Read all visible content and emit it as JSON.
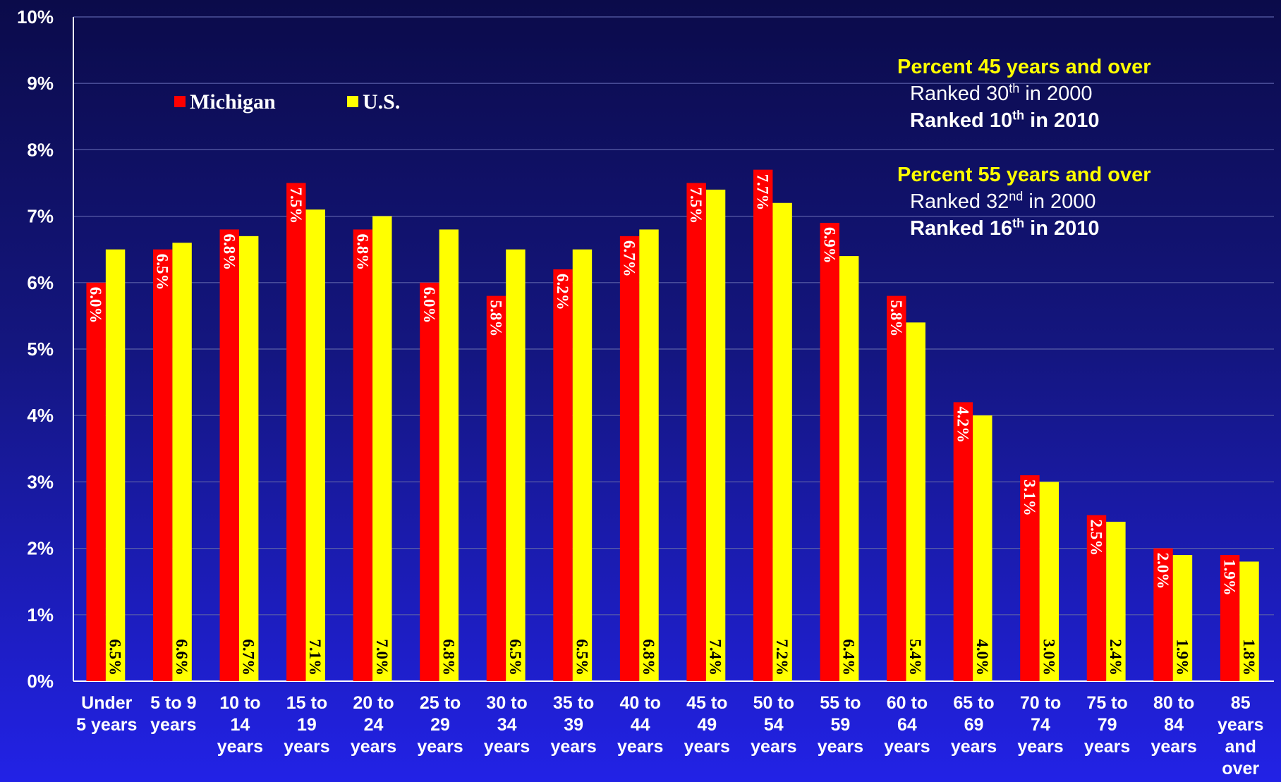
{
  "chart_data": {
    "type": "bar",
    "categories": [
      "Under\n5 years",
      "5 to 9\nyears",
      "10 to\n14\nyears",
      "15 to\n19\nyears",
      "20 to\n24\nyears",
      "25 to\n29\nyears",
      "30 to\n34\nyears",
      "35 to\n39\nyears",
      "40 to\n44\nyears",
      "45 to\n49\nyears",
      "50 to\n54\nyears",
      "55 to\n59\nyears",
      "60 to\n64\nyears",
      "65 to\n69\nyears",
      "70 to\n74\nyears",
      "75 to\n79\nyears",
      "80 to\n84\nyears",
      "85\nyears\nand\nover"
    ],
    "series": [
      {
        "name": "Michigan",
        "color": "#ff0000",
        "values": [
          6.0,
          6.5,
          6.8,
          7.5,
          6.8,
          6.0,
          5.8,
          6.2,
          6.7,
          7.5,
          7.7,
          6.9,
          5.8,
          4.2,
          3.1,
          2.5,
          2.0,
          1.9
        ],
        "value_labels": [
          "6.0%",
          "6.5%",
          "6.8%",
          "7.5%",
          "6.8%",
          "6.0%",
          "5.8%",
          "6.2%",
          "6.7%",
          "7.5%",
          "7.7%",
          "6.9%",
          "5.8%",
          "4.2%",
          "3.1%",
          "2.5%",
          "2.0%",
          "1.9%"
        ]
      },
      {
        "name": "U.S.",
        "color": "#ffff00",
        "values": [
          6.5,
          6.6,
          6.7,
          7.1,
          7.0,
          6.8,
          6.5,
          6.5,
          6.8,
          7.4,
          7.2,
          6.4,
          5.4,
          4.0,
          3.0,
          2.4,
          1.9,
          1.8
        ],
        "value_labels": [
          "6.5%",
          "6.6%",
          "6.7%",
          "7.1%",
          "7.0%",
          "6.8%",
          "6.5%",
          "6.5%",
          "6.8%",
          "7.4%",
          "7.2%",
          "6.4%",
          "5.4%",
          "4.0%",
          "3.0%",
          "2.4%",
          "1.9%",
          "1.8%"
        ]
      }
    ],
    "ylim": [
      0,
      10
    ],
    "yticks": [
      {
        "value": 0,
        "label": "0%"
      },
      {
        "value": 1,
        "label": "1%"
      },
      {
        "value": 2,
        "label": "2%"
      },
      {
        "value": 3,
        "label": "3%"
      },
      {
        "value": 4,
        "label": "4%"
      },
      {
        "value": 5,
        "label": "5%"
      },
      {
        "value": 6,
        "label": "6%"
      },
      {
        "value": 7,
        "label": "7%"
      },
      {
        "value": 8,
        "label": "8%"
      },
      {
        "value": 9,
        "label": "9%"
      },
      {
        "value": 10,
        "label": "10%"
      }
    ],
    "grid": true,
    "legend": "top-left",
    "annotations": [
      {
        "heading": "Percent 45 years and over",
        "lines": [
          {
            "parts": [
              "Ranked 30",
              "th",
              " in 2000"
            ],
            "bold": false
          },
          {
            "parts": [
              "Ranked 10",
              "th",
              " in 2010"
            ],
            "bold": true
          }
        ]
      },
      {
        "heading": "Percent 55 years and over",
        "lines": [
          {
            "parts": [
              "Ranked 32",
              "nd",
              " in 2000"
            ],
            "bold": false
          },
          {
            "parts": [
              "Ranked 16",
              "th",
              " in 2010"
            ],
            "bold": true
          }
        ]
      }
    ]
  }
}
